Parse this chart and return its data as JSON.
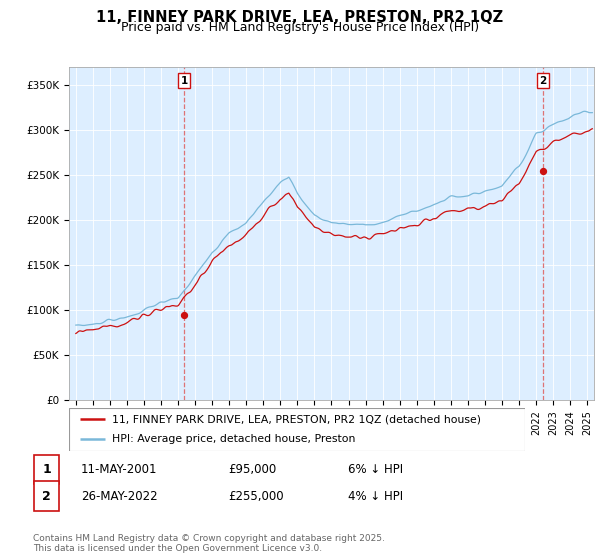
{
  "title": "11, FINNEY PARK DRIVE, LEA, PRESTON, PR2 1QZ",
  "subtitle": "Price paid vs. HM Land Registry's House Price Index (HPI)",
  "ylim": [
    0,
    370000
  ],
  "yticks": [
    0,
    50000,
    100000,
    150000,
    200000,
    250000,
    300000,
    350000
  ],
  "ytick_labels": [
    "£0",
    "£50K",
    "£100K",
    "£150K",
    "£200K",
    "£250K",
    "£300K",
    "£350K"
  ],
  "sale1_date": 2001.36,
  "sale1_price": 95000,
  "sale2_date": 2022.4,
  "sale2_price": 255000,
  "hpi_color": "#7ab8d9",
  "price_color": "#cc1111",
  "vline_color": "#dd6666",
  "bg_color": "#ddeeff",
  "grid_color": "#ffffff",
  "legend_label1": "11, FINNEY PARK DRIVE, LEA, PRESTON, PR2 1QZ (detached house)",
  "legend_label2": "HPI: Average price, detached house, Preston",
  "table_row1": [
    "1",
    "11-MAY-2001",
    "£95,000",
    "6% ↓ HPI"
  ],
  "table_row2": [
    "2",
    "26-MAY-2022",
    "£255,000",
    "4% ↓ HPI"
  ],
  "footnote": "Contains HM Land Registry data © Crown copyright and database right 2025.\nThis data is licensed under the Open Government Licence v3.0.",
  "title_fontsize": 10.5,
  "subtitle_fontsize": 9,
  "tick_fontsize": 7.5,
  "legend_fontsize": 7.8,
  "table_fontsize": 8.5,
  "footnote_fontsize": 6.5,
  "hpi_curve": {
    "nodes_x": [
      1995,
      1996,
      1997,
      1998,
      1999,
      2000,
      2001,
      2002,
      2003,
      2004,
      2005,
      2006,
      2007,
      2007.5,
      2008,
      2009,
      2010,
      2011,
      2012,
      2013,
      2014,
      2015,
      2016,
      2017,
      2018,
      2019,
      2020,
      2021,
      2022,
      2022.5,
      2023,
      2024,
      2025
    ],
    "nodes_y": [
      82000,
      84000,
      88000,
      93000,
      100000,
      108000,
      115000,
      138000,
      165000,
      185000,
      198000,
      220000,
      242000,
      248000,
      230000,
      205000,
      198000,
      195000,
      194000,
      198000,
      205000,
      210000,
      218000,
      225000,
      228000,
      232000,
      238000,
      260000,
      295000,
      300000,
      308000,
      315000,
      320000
    ]
  },
  "price_ratio": 0.93,
  "noise_scale_hpi": 2500,
  "noise_scale_price": 3500,
  "noise_seed": 17
}
